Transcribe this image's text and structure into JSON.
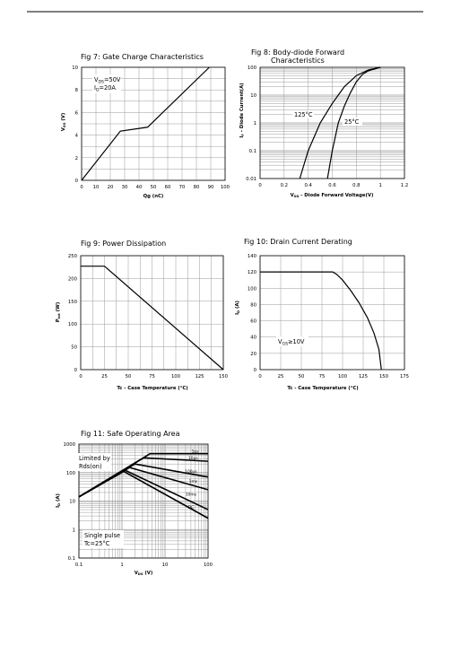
{
  "chart_data": [
    {
      "id": "fig7",
      "type": "line",
      "title": "Fig 7: Gate Charge Characteristics",
      "xlabel": "Qg (nC)",
      "ylabel": "VGS (V)",
      "ylabel_main": "V",
      "ylabel_sub": "GS",
      "ylabel_unit": " (V)",
      "xlim": [
        0,
        100
      ],
      "ylim": [
        0,
        10
      ],
      "xticks": [
        "0",
        "10",
        "20",
        "30",
        "40",
        "50",
        "60",
        "70",
        "80",
        "90",
        "100"
      ],
      "yticks": [
        "0",
        "2",
        "4",
        "6",
        "8",
        "10"
      ],
      "annotations": [
        {
          "main": "V",
          "sub": "DS",
          "rest": "=50V"
        },
        {
          "main": "I",
          "sub": "D",
          "rest": "=20A"
        }
      ],
      "series": [
        {
          "x": [
            0,
            27,
            46,
            89
          ],
          "y": [
            0,
            4.35,
            4.7,
            10
          ]
        }
      ]
    },
    {
      "id": "fig8",
      "type": "line",
      "title": "Fig 8: Body-diode Forward",
      "title2": "Characteristics",
      "xlabel": "VSD - Diode Forward Voltage(V)",
      "xlabel_main": "V",
      "xlabel_sub": "SD",
      "xlabel_rest": " - Diode Forward Voltage(V)",
      "ylabel": "IF - Diode Current(A)",
      "ylabel_main": "I",
      "ylabel_sub": "F",
      "ylabel_rest": " - Diode Current(A)",
      "yscale": "log",
      "xlim": [
        0,
        1.2
      ],
      "ylim": [
        0.01,
        100
      ],
      "xticks": [
        "0",
        "0.2",
        "0.4",
        "0.6",
        "0.8",
        "1",
        "1.2"
      ],
      "yticks": [
        "0.01",
        "0.1",
        "1",
        "10",
        "100"
      ],
      "series": [
        {
          "name": "125°C",
          "x": [
            0.33,
            0.4,
            0.5,
            0.6,
            0.7,
            0.8,
            0.9,
            1.0
          ],
          "y": [
            0.01,
            0.1,
            1.0,
            5.0,
            20,
            50,
            80,
            100
          ]
        },
        {
          "name": "25°C",
          "x": [
            0.56,
            0.6,
            0.65,
            0.7,
            0.75,
            0.8,
            0.85,
            0.9,
            1.0
          ],
          "y": [
            0.01,
            0.1,
            1.0,
            4.0,
            12,
            30,
            55,
            75,
            100
          ]
        }
      ]
    },
    {
      "id": "fig9",
      "type": "line",
      "title": "Fig 9: Power Dissipation",
      "xlabel": "Tc - Case Temperature (°C)",
      "ylabel": "Ptot (W)",
      "ylabel_main": "P",
      "ylabel_sub": "tot",
      "ylabel_unit": " (W)",
      "xlim": [
        0,
        150
      ],
      "ylim": [
        0,
        250
      ],
      "xticks": [
        "0",
        "25",
        "50",
        "75",
        "100",
        "125",
        "150"
      ],
      "yticks": [
        "0",
        "50",
        "100",
        "150",
        "200",
        "250"
      ],
      "series": [
        {
          "x": [
            0,
            25,
            150
          ],
          "y": [
            227,
            227,
            0
          ]
        }
      ]
    },
    {
      "id": "fig10",
      "type": "line",
      "title": "Fig 10: Drain Current Derating",
      "xlabel": "Tc - Case Temperature (°C)",
      "ylabel": "ID (A)",
      "ylabel_main": "I",
      "ylabel_sub": "D",
      "ylabel_unit": " (A)",
      "xlim": [
        0,
        175
      ],
      "ylim": [
        0,
        140
      ],
      "xticks": [
        "0",
        "25",
        "50",
        "75",
        "100",
        "125",
        "150",
        "175"
      ],
      "yticks": [
        "0",
        "20",
        "40",
        "60",
        "80",
        "100",
        "120",
        "140"
      ],
      "annotation": {
        "main": "V",
        "sub": "GS",
        "rest": "≥10V"
      },
      "series": [
        {
          "x": [
            0,
            88,
            93,
            100,
            110,
            120,
            130,
            138,
            144,
            147
          ],
          "y": [
            120,
            120,
            117,
            110,
            97,
            82,
            64,
            45,
            25,
            0
          ]
        }
      ]
    },
    {
      "id": "fig11",
      "type": "line",
      "title": "Fig 11: Safe Operating Area",
      "xlabel": "VDS (V)",
      "xlabel_main": "V",
      "xlabel_sub": "DS",
      "xlabel_unit": " (V)",
      "ylabel": "ID (A)",
      "ylabel_main": "I",
      "ylabel_sub": "D",
      "ylabel_unit": " (A)",
      "xscale": "log",
      "yscale": "log",
      "xlim": [
        0.1,
        100
      ],
      "ylim": [
        0.1,
        1000
      ],
      "xticks": [
        "0.1",
        "1",
        "10",
        "100"
      ],
      "yticks": [
        "0.1",
        "1",
        "10",
        "100",
        "1000"
      ],
      "labels": {
        "limited1": "Limited by",
        "limited2": "Rds(on)",
        "pulse1": "Single pulse",
        "pulse2": "Tc=25°C"
      },
      "series": [
        {
          "name": "1μs",
          "x": [
            0.1,
            4.5,
            10,
            100
          ],
          "y": [
            14,
            460,
            460,
            460
          ]
        },
        {
          "name": "10μs",
          "x": [
            0.1,
            3.2,
            100
          ],
          "y": [
            14,
            330,
            250
          ]
        },
        {
          "name": "100μs",
          "x": [
            0.1,
            2.0,
            100
          ],
          "y": [
            14,
            200,
            70
          ]
        },
        {
          "name": "1ms",
          "x": [
            0.1,
            1.5,
            100
          ],
          "y": [
            14,
            150,
            25
          ]
        },
        {
          "name": "10ms",
          "x": [
            0.1,
            1.2,
            100
          ],
          "y": [
            14,
            120,
            5
          ]
        },
        {
          "name": "DC",
          "x": [
            0.1,
            1.1,
            100
          ],
          "y": [
            14,
            110,
            2.5
          ]
        }
      ],
      "curve_labels": [
        {
          "text": "1μs",
          "x": 50,
          "y": 550
        },
        {
          "text": "10μs",
          "x": 45,
          "y": 330
        },
        {
          "text": "100μs",
          "x": 40,
          "y": 110
        },
        {
          "text": "1ms",
          "x": 45,
          "y": 50
        },
        {
          "text": "10ms",
          "x": 40,
          "y": 17
        },
        {
          "text": "DC",
          "x": 40,
          "y": 6
        }
      ]
    }
  ]
}
